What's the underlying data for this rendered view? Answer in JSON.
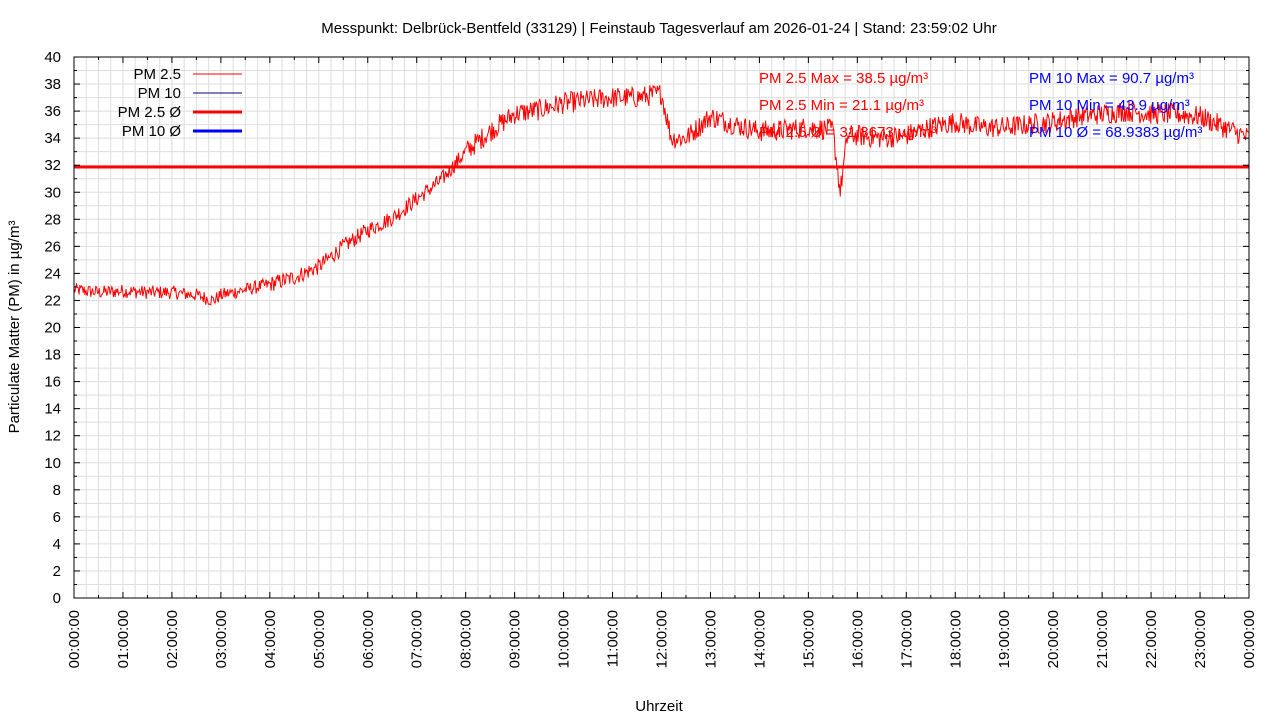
{
  "chart_data": {
    "type": "line",
    "title": "Messpunkt: Delbrück-Bentfeld (33129) | Feinstaub Tagesverlauf am 2026-01-24 | Stand: 23:59:02 Uhr",
    "xlabel": "Uhrzeit",
    "ylabel": "Particulate Matter (PM) in µg/m³",
    "ylim": [
      0,
      40
    ],
    "y_ticks": [
      "0",
      "2",
      "4",
      "6",
      "8",
      "10",
      "12",
      "14",
      "16",
      "18",
      "20",
      "22",
      "24",
      "26",
      "28",
      "30",
      "32",
      "34",
      "36",
      "38",
      "40"
    ],
    "x_ticks": [
      "00:00:00",
      "01:00:00",
      "02:00:00",
      "03:00:00",
      "04:00:00",
      "05:00:00",
      "06:00:00",
      "07:00:00",
      "08:00:00",
      "09:00:00",
      "10:00:00",
      "11:00:00",
      "12:00:00",
      "13:00:00",
      "14:00:00",
      "15:00:00",
      "16:00:00",
      "17:00:00",
      "18:00:00",
      "19:00:00",
      "20:00:00",
      "21:00:00",
      "22:00:00",
      "23:00:00",
      "00:00:00"
    ],
    "grid": true,
    "legend_position": "top-left",
    "colors": {
      "pm25": "#ff0000",
      "pm10": "#000080",
      "pm25_avg": "#ff0000",
      "pm10_avg": "#0000ff",
      "grid": "#dddddd"
    },
    "legend": [
      {
        "label": "PM 2.5",
        "color": "#ff0000",
        "style": "thin"
      },
      {
        "label": "PM 10",
        "color": "#000080",
        "style": "thin"
      },
      {
        "label": "PM 2.5 Ø",
        "color": "#ff0000",
        "style": "thick"
      },
      {
        "label": "PM 10 Ø",
        "color": "#0000ff",
        "style": "thick"
      }
    ],
    "annotations_pm25": [
      "PM 2.5 Max = 38.5 µg/m³",
      "PM 2.5 Min = 21.1 µg/m³",
      "PM 2.5 Ø = 31.8673 µg/m³"
    ],
    "annotations_pm10": [
      "PM 10 Max = 90.7 µg/m³",
      "PM 10 Min = 43.9 µg/m³",
      "PM 10 Ø = 68.9383 µg/m³"
    ],
    "series": [
      {
        "name": "PM 2.5",
        "x_hours": [
          0,
          0.5,
          1,
          1.5,
          2,
          2.5,
          2.85,
          3,
          3.5,
          4,
          4.5,
          5,
          5.5,
          6,
          6.5,
          7,
          7.5,
          8,
          8.5,
          9,
          9.5,
          10,
          10.5,
          11,
          11.5,
          12,
          12.2,
          12.5,
          13,
          13.5,
          14,
          14.5,
          15,
          15.5,
          15.65,
          15.8,
          16,
          16.5,
          17,
          17.5,
          18,
          18.5,
          19,
          19.5,
          20,
          20.5,
          21,
          21.5,
          22,
          22.5,
          23,
          23.5,
          24
        ],
        "values": [
          22.8,
          22.6,
          22.7,
          22.6,
          22.6,
          22.4,
          22.0,
          22.4,
          22.8,
          23.2,
          23.7,
          24.5,
          26.0,
          27.2,
          28.1,
          29.5,
          30.9,
          33.0,
          34.5,
          35.8,
          36.1,
          36.6,
          36.8,
          37.0,
          37.0,
          37.3,
          34.0,
          34.0,
          35.6,
          35.0,
          34.5,
          34.6,
          34.8,
          34.6,
          30.0,
          34.2,
          34.2,
          34.0,
          34.2,
          34.8,
          35.2,
          34.8,
          34.8,
          35.0,
          35.2,
          35.6,
          35.8,
          36.0,
          35.8,
          35.8,
          35.6,
          34.8,
          34.0
        ]
      }
    ],
    "averages": [
      {
        "name": "PM 2.5 Ø",
        "value": 31.8673
      }
    ]
  }
}
